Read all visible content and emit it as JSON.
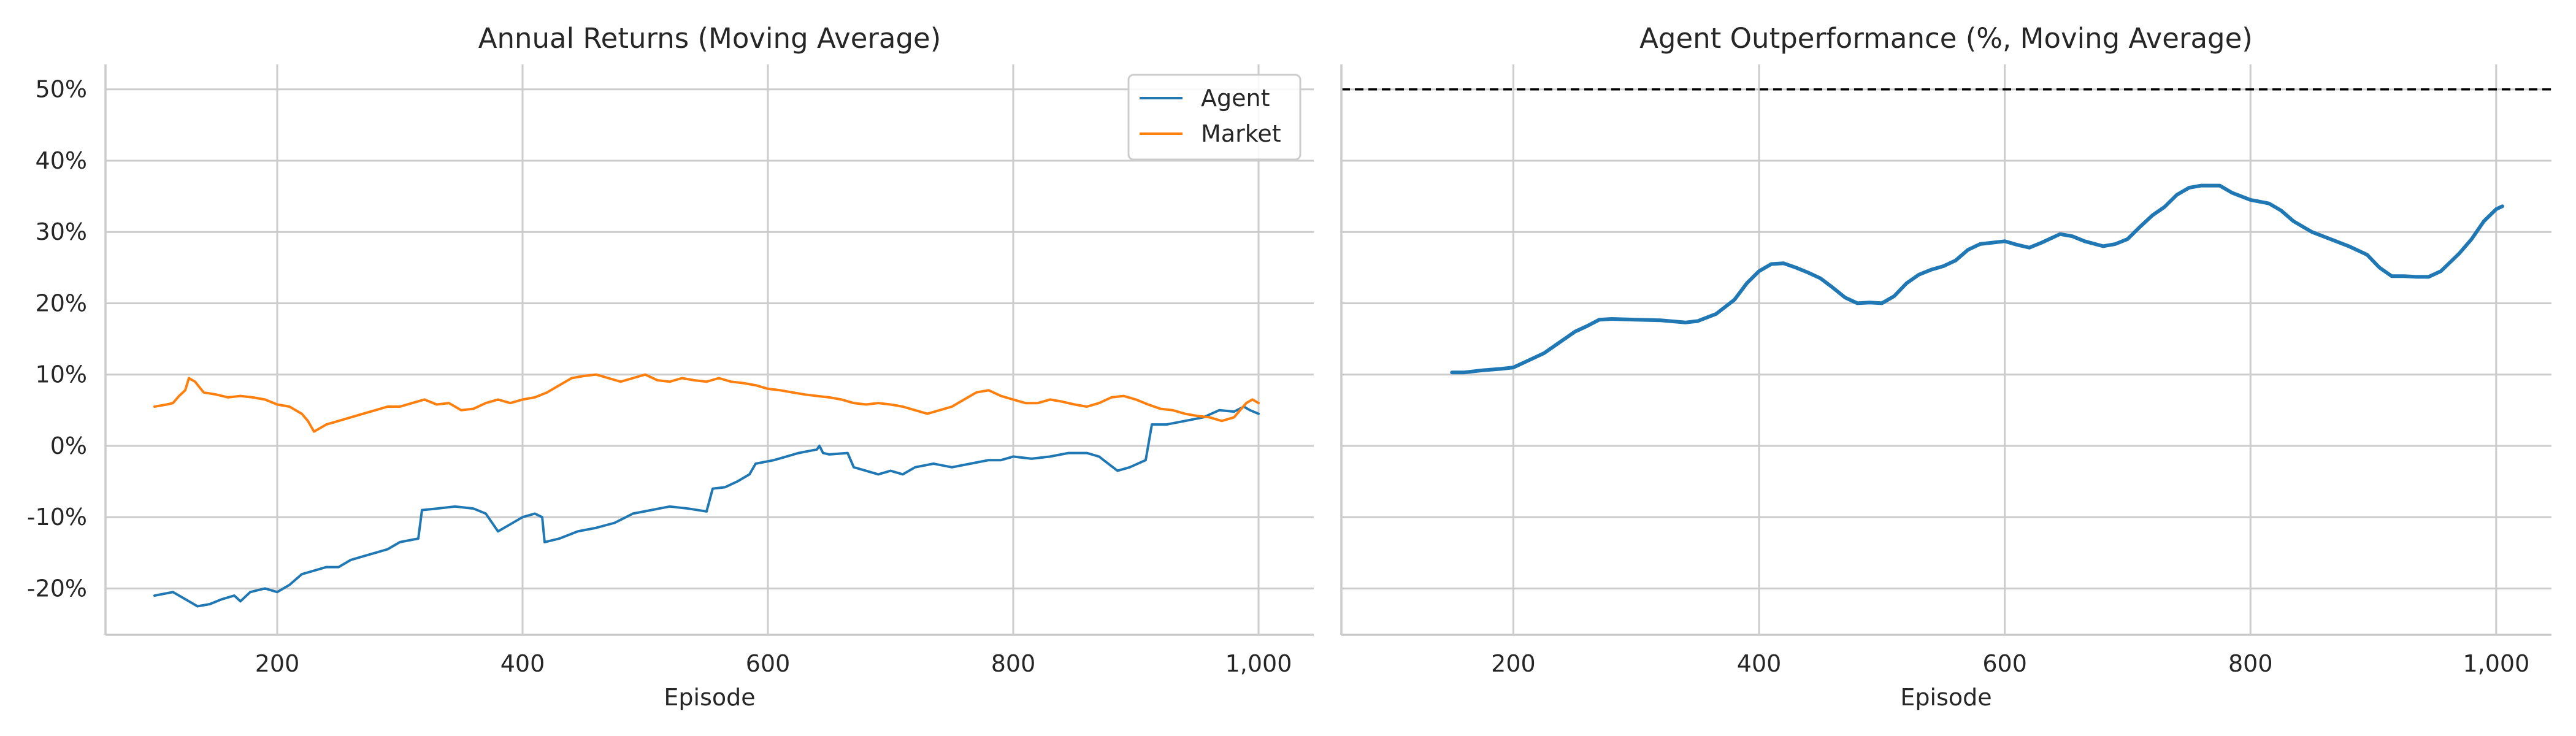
{
  "colors": {
    "agent": "#1f77b4",
    "market": "#ff7f0e",
    "grid": "#cccccc",
    "axis": "#cccccc",
    "reference": "#000000"
  },
  "chart_data": [
    {
      "type": "line",
      "title": "Annual Returns (Moving Average)",
      "xlabel": "Episode",
      "ylabel": "",
      "xlim": [
        60,
        1045
      ],
      "ylim": [
        -0.265,
        0.535
      ],
      "x_ticks": [
        200,
        400,
        600,
        800,
        1000
      ],
      "x_tick_labels": [
        "200",
        "400",
        "600",
        "800",
        "1,000"
      ],
      "y_ticks": [
        -0.2,
        -0.1,
        0.0,
        0.1,
        0.2,
        0.3,
        0.4,
        0.5
      ],
      "y_tick_labels": [
        "-20%",
        "-10%",
        "0%",
        "10%",
        "20%",
        "30%",
        "40%",
        "50%"
      ],
      "grid": true,
      "legend": "top-right",
      "series": [
        {
          "name": "Agent",
          "color_key": "agent",
          "points": [
            [
              100,
              -0.21
            ],
            [
              115,
              -0.205
            ],
            [
              125,
              -0.215
            ],
            [
              135,
              -0.225
            ],
            [
              145,
              -0.222
            ],
            [
              155,
              -0.215
            ],
            [
              165,
              -0.21
            ],
            [
              170,
              -0.218
            ],
            [
              178,
              -0.205
            ],
            [
              190,
              -0.2
            ],
            [
              200,
              -0.205
            ],
            [
              210,
              -0.195
            ],
            [
              220,
              -0.18
            ],
            [
              230,
              -0.175
            ],
            [
              240,
              -0.17
            ],
            [
              250,
              -0.17
            ],
            [
              260,
              -0.16
            ],
            [
              270,
              -0.155
            ],
            [
              280,
              -0.15
            ],
            [
              290,
              -0.145
            ],
            [
              300,
              -0.135
            ],
            [
              315,
              -0.13
            ],
            [
              318,
              -0.09
            ],
            [
              330,
              -0.088
            ],
            [
              345,
              -0.085
            ],
            [
              360,
              -0.088
            ],
            [
              370,
              -0.095
            ],
            [
              380,
              -0.12
            ],
            [
              390,
              -0.11
            ],
            [
              400,
              -0.1
            ],
            [
              410,
              -0.095
            ],
            [
              416,
              -0.1
            ],
            [
              418,
              -0.135
            ],
            [
              430,
              -0.13
            ],
            [
              445,
              -0.12
            ],
            [
              460,
              -0.115
            ],
            [
              475,
              -0.108
            ],
            [
              490,
              -0.095
            ],
            [
              505,
              -0.09
            ],
            [
              520,
              -0.085
            ],
            [
              535,
              -0.088
            ],
            [
              550,
              -0.092
            ],
            [
              555,
              -0.06
            ],
            [
              565,
              -0.058
            ],
            [
              575,
              -0.05
            ],
            [
              585,
              -0.04
            ],
            [
              590,
              -0.025
            ],
            [
              605,
              -0.02
            ],
            [
              615,
              -0.015
            ],
            [
              625,
              -0.01
            ],
            [
              640,
              -0.005
            ],
            [
              642,
              0.0
            ],
            [
              645,
              -0.01
            ],
            [
              650,
              -0.012
            ],
            [
              665,
              -0.01
            ],
            [
              670,
              -0.03
            ],
            [
              680,
              -0.035
            ],
            [
              690,
              -0.04
            ],
            [
              700,
              -0.035
            ],
            [
              710,
              -0.04
            ],
            [
              720,
              -0.03
            ],
            [
              735,
              -0.025
            ],
            [
              750,
              -0.03
            ],
            [
              765,
              -0.025
            ],
            [
              780,
              -0.02
            ],
            [
              790,
              -0.02
            ],
            [
              800,
              -0.015
            ],
            [
              815,
              -0.018
            ],
            [
              830,
              -0.015
            ],
            [
              845,
              -0.01
            ],
            [
              860,
              -0.01
            ],
            [
              870,
              -0.015
            ],
            [
              885,
              -0.035
            ],
            [
              895,
              -0.03
            ],
            [
              908,
              -0.02
            ],
            [
              913,
              0.03
            ],
            [
              925,
              0.03
            ],
            [
              940,
              0.035
            ],
            [
              955,
              0.04
            ],
            [
              968,
              0.05
            ],
            [
              980,
              0.048
            ],
            [
              988,
              0.055
            ],
            [
              993,
              0.05
            ],
            [
              1000,
              0.045
            ]
          ]
        },
        {
          "name": "Market",
          "color_key": "market",
          "points": [
            [
              100,
              0.055
            ],
            [
              110,
              0.058
            ],
            [
              115,
              0.06
            ],
            [
              120,
              0.07
            ],
            [
              125,
              0.078
            ],
            [
              128,
              0.095
            ],
            [
              133,
              0.09
            ],
            [
              140,
              0.075
            ],
            [
              150,
              0.072
            ],
            [
              160,
              0.068
            ],
            [
              170,
              0.07
            ],
            [
              180,
              0.068
            ],
            [
              190,
              0.065
            ],
            [
              200,
              0.058
            ],
            [
              210,
              0.055
            ],
            [
              220,
              0.045
            ],
            [
              225,
              0.035
            ],
            [
              230,
              0.02
            ],
            [
              240,
              0.03
            ],
            [
              250,
              0.035
            ],
            [
              260,
              0.04
            ],
            [
              270,
              0.045
            ],
            [
              280,
              0.05
            ],
            [
              290,
              0.055
            ],
            [
              300,
              0.055
            ],
            [
              310,
              0.06
            ],
            [
              320,
              0.065
            ],
            [
              330,
              0.058
            ],
            [
              340,
              0.06
            ],
            [
              350,
              0.05
            ],
            [
              360,
              0.052
            ],
            [
              370,
              0.06
            ],
            [
              380,
              0.065
            ],
            [
              390,
              0.06
            ],
            [
              400,
              0.065
            ],
            [
              410,
              0.068
            ],
            [
              420,
              0.075
            ],
            [
              430,
              0.085
            ],
            [
              440,
              0.095
            ],
            [
              450,
              0.098
            ],
            [
              460,
              0.1
            ],
            [
              470,
              0.095
            ],
            [
              480,
              0.09
            ],
            [
              490,
              0.095
            ],
            [
              500,
              0.1
            ],
            [
              510,
              0.092
            ],
            [
              520,
              0.09
            ],
            [
              530,
              0.095
            ],
            [
              540,
              0.092
            ],
            [
              550,
              0.09
            ],
            [
              560,
              0.095
            ],
            [
              570,
              0.09
            ],
            [
              580,
              0.088
            ],
            [
              590,
              0.085
            ],
            [
              600,
              0.08
            ],
            [
              610,
              0.078
            ],
            [
              620,
              0.075
            ],
            [
              630,
              0.072
            ],
            [
              640,
              0.07
            ],
            [
              650,
              0.068
            ],
            [
              660,
              0.065
            ],
            [
              670,
              0.06
            ],
            [
              680,
              0.058
            ],
            [
              690,
              0.06
            ],
            [
              700,
              0.058
            ],
            [
              710,
              0.055
            ],
            [
              720,
              0.05
            ],
            [
              730,
              0.045
            ],
            [
              740,
              0.05
            ],
            [
              750,
              0.055
            ],
            [
              760,
              0.065
            ],
            [
              770,
              0.075
            ],
            [
              780,
              0.078
            ],
            [
              790,
              0.07
            ],
            [
              800,
              0.065
            ],
            [
              810,
              0.06
            ],
            [
              820,
              0.06
            ],
            [
              830,
              0.065
            ],
            [
              840,
              0.062
            ],
            [
              850,
              0.058
            ],
            [
              860,
              0.055
            ],
            [
              870,
              0.06
            ],
            [
              880,
              0.068
            ],
            [
              890,
              0.07
            ],
            [
              900,
              0.065
            ],
            [
              910,
              0.058
            ],
            [
              920,
              0.052
            ],
            [
              930,
              0.05
            ],
            [
              940,
              0.045
            ],
            [
              950,
              0.042
            ],
            [
              960,
              0.04
            ],
            [
              970,
              0.035
            ],
            [
              980,
              0.04
            ],
            [
              990,
              0.06
            ],
            [
              995,
              0.065
            ],
            [
              1000,
              0.06
            ]
          ]
        }
      ]
    },
    {
      "type": "line",
      "title": "Agent Outperformance (%, Moving Average)",
      "xlabel": "Episode",
      "ylabel": "",
      "xlim": [
        60,
        1045
      ],
      "ylim": [
        -0.265,
        0.535
      ],
      "x_ticks": [
        200,
        400,
        600,
        800,
        1000
      ],
      "x_tick_labels": [
        "200",
        "400",
        "600",
        "800",
        "1,000"
      ],
      "y_ticks": [
        -0.2,
        -0.1,
        0.0,
        0.1,
        0.2,
        0.3,
        0.4,
        0.5
      ],
      "grid": true,
      "reference_line": {
        "y": 0.5,
        "style": "dashed",
        "color_key": "reference"
      },
      "series": [
        {
          "color_key": "agent",
          "points": [
            [
              150,
              0.103
            ],
            [
              160,
              0.103
            ],
            [
              175,
              0.106
            ],
            [
              190,
              0.108
            ],
            [
              200,
              0.11
            ],
            [
              210,
              0.118
            ],
            [
              225,
              0.13
            ],
            [
              240,
              0.148
            ],
            [
              250,
              0.16
            ],
            [
              260,
              0.168
            ],
            [
              270,
              0.177
            ],
            [
              280,
              0.178
            ],
            [
              300,
              0.177
            ],
            [
              320,
              0.176
            ],
            [
              340,
              0.173
            ],
            [
              350,
              0.175
            ],
            [
              365,
              0.185
            ],
            [
              380,
              0.205
            ],
            [
              390,
              0.228
            ],
            [
              400,
              0.245
            ],
            [
              410,
              0.255
            ],
            [
              420,
              0.256
            ],
            [
              430,
              0.25
            ],
            [
              440,
              0.243
            ],
            [
              450,
              0.235
            ],
            [
              460,
              0.222
            ],
            [
              470,
              0.208
            ],
            [
              480,
              0.2
            ],
            [
              490,
              0.201
            ],
            [
              500,
              0.2
            ],
            [
              510,
              0.21
            ],
            [
              520,
              0.228
            ],
            [
              530,
              0.24
            ],
            [
              540,
              0.247
            ],
            [
              550,
              0.252
            ],
            [
              560,
              0.26
            ],
            [
              570,
              0.275
            ],
            [
              580,
              0.283
            ],
            [
              590,
              0.285
            ],
            [
              600,
              0.287
            ],
            [
              610,
              0.282
            ],
            [
              620,
              0.278
            ],
            [
              630,
              0.285
            ],
            [
              645,
              0.297
            ],
            [
              655,
              0.294
            ],
            [
              665,
              0.287
            ],
            [
              680,
              0.28
            ],
            [
              690,
              0.283
            ],
            [
              700,
              0.29
            ],
            [
              710,
              0.307
            ],
            [
              720,
              0.323
            ],
            [
              730,
              0.335
            ],
            [
              740,
              0.352
            ],
            [
              750,
              0.362
            ],
            [
              760,
              0.365
            ],
            [
              775,
              0.365
            ],
            [
              785,
              0.355
            ],
            [
              800,
              0.345
            ],
            [
              815,
              0.34
            ],
            [
              825,
              0.33
            ],
            [
              835,
              0.315
            ],
            [
              850,
              0.3
            ],
            [
              865,
              0.29
            ],
            [
              880,
              0.28
            ],
            [
              895,
              0.268
            ],
            [
              905,
              0.25
            ],
            [
              915,
              0.238
            ],
            [
              925,
              0.238
            ],
            [
              935,
              0.237
            ],
            [
              945,
              0.237
            ],
            [
              955,
              0.245
            ],
            [
              970,
              0.27
            ],
            [
              980,
              0.29
            ],
            [
              990,
              0.315
            ],
            [
              1000,
              0.332
            ],
            [
              1005,
              0.336
            ]
          ]
        }
      ]
    }
  ]
}
